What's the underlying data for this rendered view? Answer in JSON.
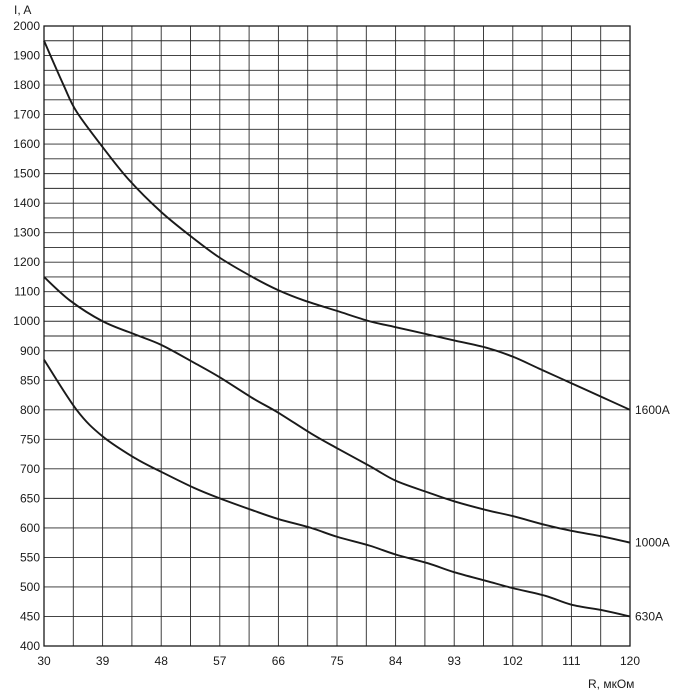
{
  "chart_data": {
    "type": "line",
    "xlabel": "R, мкОм",
    "ylabel": "I, A",
    "xlim": [
      30,
      120
    ],
    "x_ticks": [
      30,
      39,
      48,
      57,
      66,
      75,
      84,
      93,
      102,
      111,
      120
    ],
    "x_tick_labels": [
      "30",
      "39",
      "48",
      "57",
      "66",
      "75",
      "84",
      "93",
      "102",
      "111",
      "120"
    ],
    "y_ticks": [
      400,
      450,
      500,
      550,
      600,
      650,
      700,
      750,
      800,
      850,
      900,
      1000,
      1100,
      1200,
      1300,
      1400,
      1500,
      1600,
      1700,
      1800,
      1900,
      2000
    ],
    "y_tick_labels": [
      "400",
      "450",
      "500",
      "550",
      "600",
      "650",
      "700",
      "750",
      "800",
      "850",
      "900",
      "1000",
      "1100",
      "1200",
      "1300",
      "1400",
      "1500",
      "1600",
      "1700",
      "1800",
      "1900",
      "2000"
    ],
    "grid": true,
    "series": [
      {
        "name": "1600A",
        "x": [
          30,
          33,
          35,
          39,
          43,
          48,
          53,
          57,
          62,
          66,
          70,
          75,
          80,
          84,
          90,
          93,
          98,
          102,
          106,
          111,
          116,
          120
        ],
        "y": [
          1950,
          1800,
          1710,
          1590,
          1480,
          1370,
          1280,
          1215,
          1150,
          1105,
          1070,
          1035,
          1000,
          980,
          950,
          935,
          910,
          890,
          870,
          845,
          820,
          800
        ]
      },
      {
        "name": "1000A",
        "x": [
          30,
          34,
          39,
          44,
          48,
          53,
          57,
          62,
          66,
          71,
          75,
          80,
          84,
          89,
          93,
          98,
          102,
          107,
          111,
          116,
          120
        ],
        "y": [
          1150,
          1070,
          1000,
          955,
          920,
          880,
          855,
          820,
          795,
          760,
          735,
          705,
          680,
          660,
          645,
          630,
          620,
          605,
          595,
          585,
          575
        ]
      },
      {
        "name": "630A",
        "x": [
          30,
          35,
          39,
          44,
          48,
          53,
          57,
          62,
          66,
          71,
          75,
          80,
          84,
          89,
          93,
          98,
          102,
          107,
          111,
          116,
          120
        ],
        "y": [
          885,
          800,
          755,
          718,
          695,
          668,
          650,
          630,
          615,
          600,
          585,
          570,
          555,
          540,
          525,
          510,
          498,
          485,
          470,
          460,
          450
        ]
      }
    ]
  }
}
